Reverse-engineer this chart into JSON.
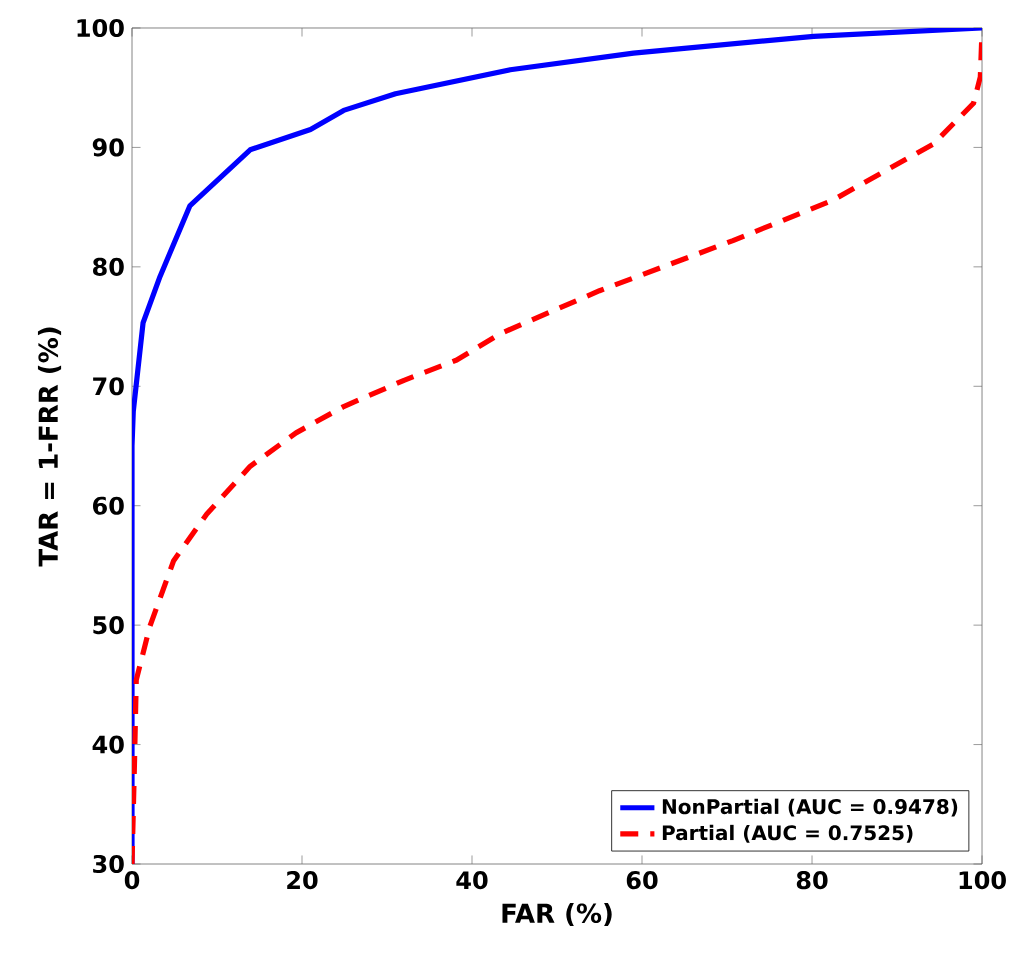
{
  "chart_data": {
    "type": "line",
    "xlabel": "FAR (%)",
    "ylabel": "TAR = 1-FRR (%)",
    "xlim": [
      0,
      100
    ],
    "ylim": [
      30,
      100
    ],
    "xticks": [
      0,
      20,
      40,
      60,
      80,
      100
    ],
    "yticks": [
      30,
      40,
      50,
      60,
      70,
      80,
      90,
      100
    ],
    "grid": false,
    "legend": "bottom right",
    "marker": "none",
    "series": [
      {
        "name": "NonPartial (AUC = 0.9478)",
        "color": "#0000ff",
        "line_style": "solid",
        "x": [
          0,
          0,
          0.15,
          1.3,
          3.3,
          6.8,
          13.9,
          21,
          24.9,
          31,
          44.5,
          59,
          80.2,
          100
        ],
        "values": [
          30,
          65,
          67.9,
          75.3,
          79.2,
          85.1,
          89.8,
          91.5,
          93.1,
          94.5,
          96.5,
          97.9,
          99.3,
          100
        ]
      },
      {
        "name": "Partial (AUC = 0.7525)",
        "color": "#ff0000",
        "line_style": "dashed",
        "x": [
          0,
          0.3,
          0.5,
          2.1,
          4.9,
          8.8,
          13.9,
          19.3,
          24.9,
          32,
          38.2,
          43.3,
          55,
          70.7,
          82.5,
          94.3,
          99,
          99.8,
          100
        ],
        "values": [
          30,
          38.7,
          45.4,
          49.9,
          55.4,
          59.3,
          63.3,
          66.1,
          68.3,
          70.5,
          72.2,
          74.4,
          78,
          82.2,
          85.6,
          90.3,
          93.7,
          95.9,
          99.8
        ]
      }
    ]
  }
}
